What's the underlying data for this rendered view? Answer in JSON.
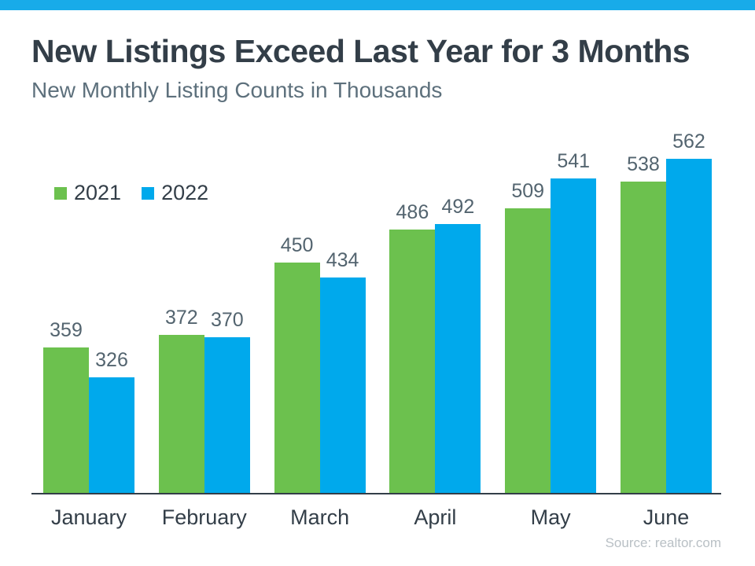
{
  "accent_color": "#18abe9",
  "axis_color": "#333e48",
  "header": {
    "title": "New Listings Exceed Last Year for 3 Months",
    "subtitle": "New Monthly Listing Counts in Thousands"
  },
  "legend": {
    "items": [
      {
        "label": "2021",
        "color": "#6cc14e"
      },
      {
        "label": "2022",
        "color": "#00a9ec"
      }
    ]
  },
  "source": "Source: realtor.com",
  "chart_data": {
    "type": "bar",
    "title": "New Listings Exceed Last Year for 3 Months",
    "subtitle": "New Monthly Listing Counts in Thousands",
    "categories": [
      "January",
      "February",
      "March",
      "April",
      "May",
      "June"
    ],
    "series": [
      {
        "name": "2021",
        "color": "#6cc14e",
        "values": [
          359,
          372,
          450,
          486,
          509,
          538
        ]
      },
      {
        "name": "2022",
        "color": "#00a9ec",
        "values": [
          326,
          370,
          434,
          492,
          541,
          562
        ]
      }
    ],
    "ylim": [
      200,
      580
    ],
    "value_labels": true,
    "grid": false,
    "legend_position": "top-left",
    "source_note": "Source: realtor.com"
  }
}
